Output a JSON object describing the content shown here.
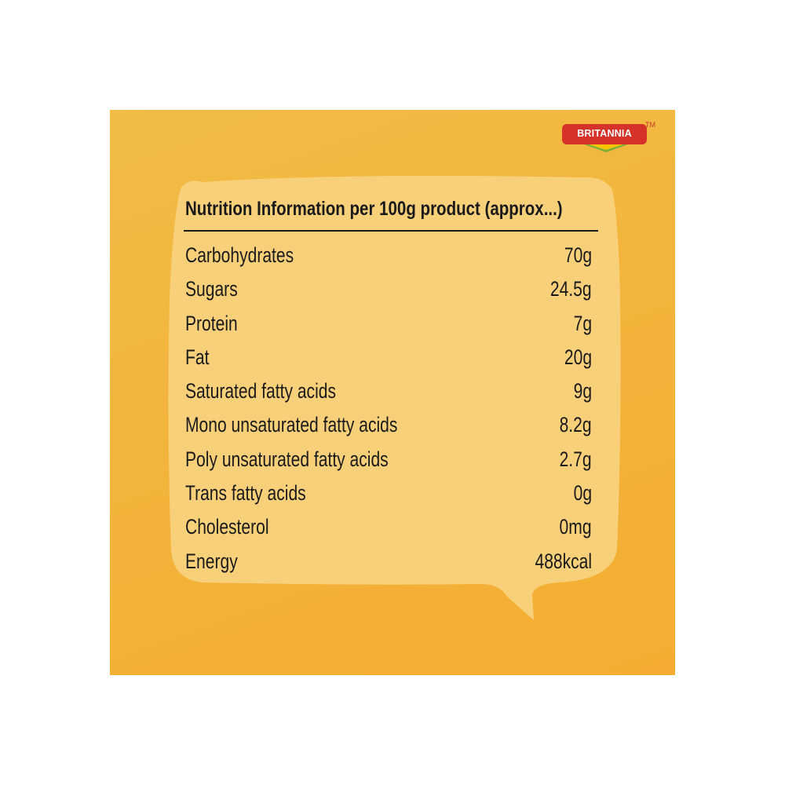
{
  "brand": {
    "logo_text": "BRITANNIA",
    "trademark": "TM",
    "colors": {
      "red": "#d7322a",
      "green": "#79b13a",
      "yellow": "#f6c400"
    }
  },
  "colors": {
    "background": "#f3b33a",
    "bubble": "#f9d07a",
    "text": "#1a1a1a"
  },
  "nutrition": {
    "title": "Nutrition Information per 100g product (approx...)",
    "rows": [
      {
        "label": "Carbohydrates",
        "value": "70g"
      },
      {
        "label": "Sugars",
        "value": "24.5g"
      },
      {
        "label": "Protein",
        "value": "7g"
      },
      {
        "label": "Fat",
        "value": "20g"
      },
      {
        "label": "Saturated fatty acids",
        "value": "9g"
      },
      {
        "label": "Mono unsaturated fatty acids",
        "value": "8.2g"
      },
      {
        "label": "Poly unsaturated fatty acids",
        "value": "2.7g"
      },
      {
        "label": "Trans fatty acids",
        "value": "0g"
      },
      {
        "label": "Cholesterol",
        "value": "0mg"
      },
      {
        "label": "Energy",
        "value": "488kcal"
      }
    ]
  }
}
